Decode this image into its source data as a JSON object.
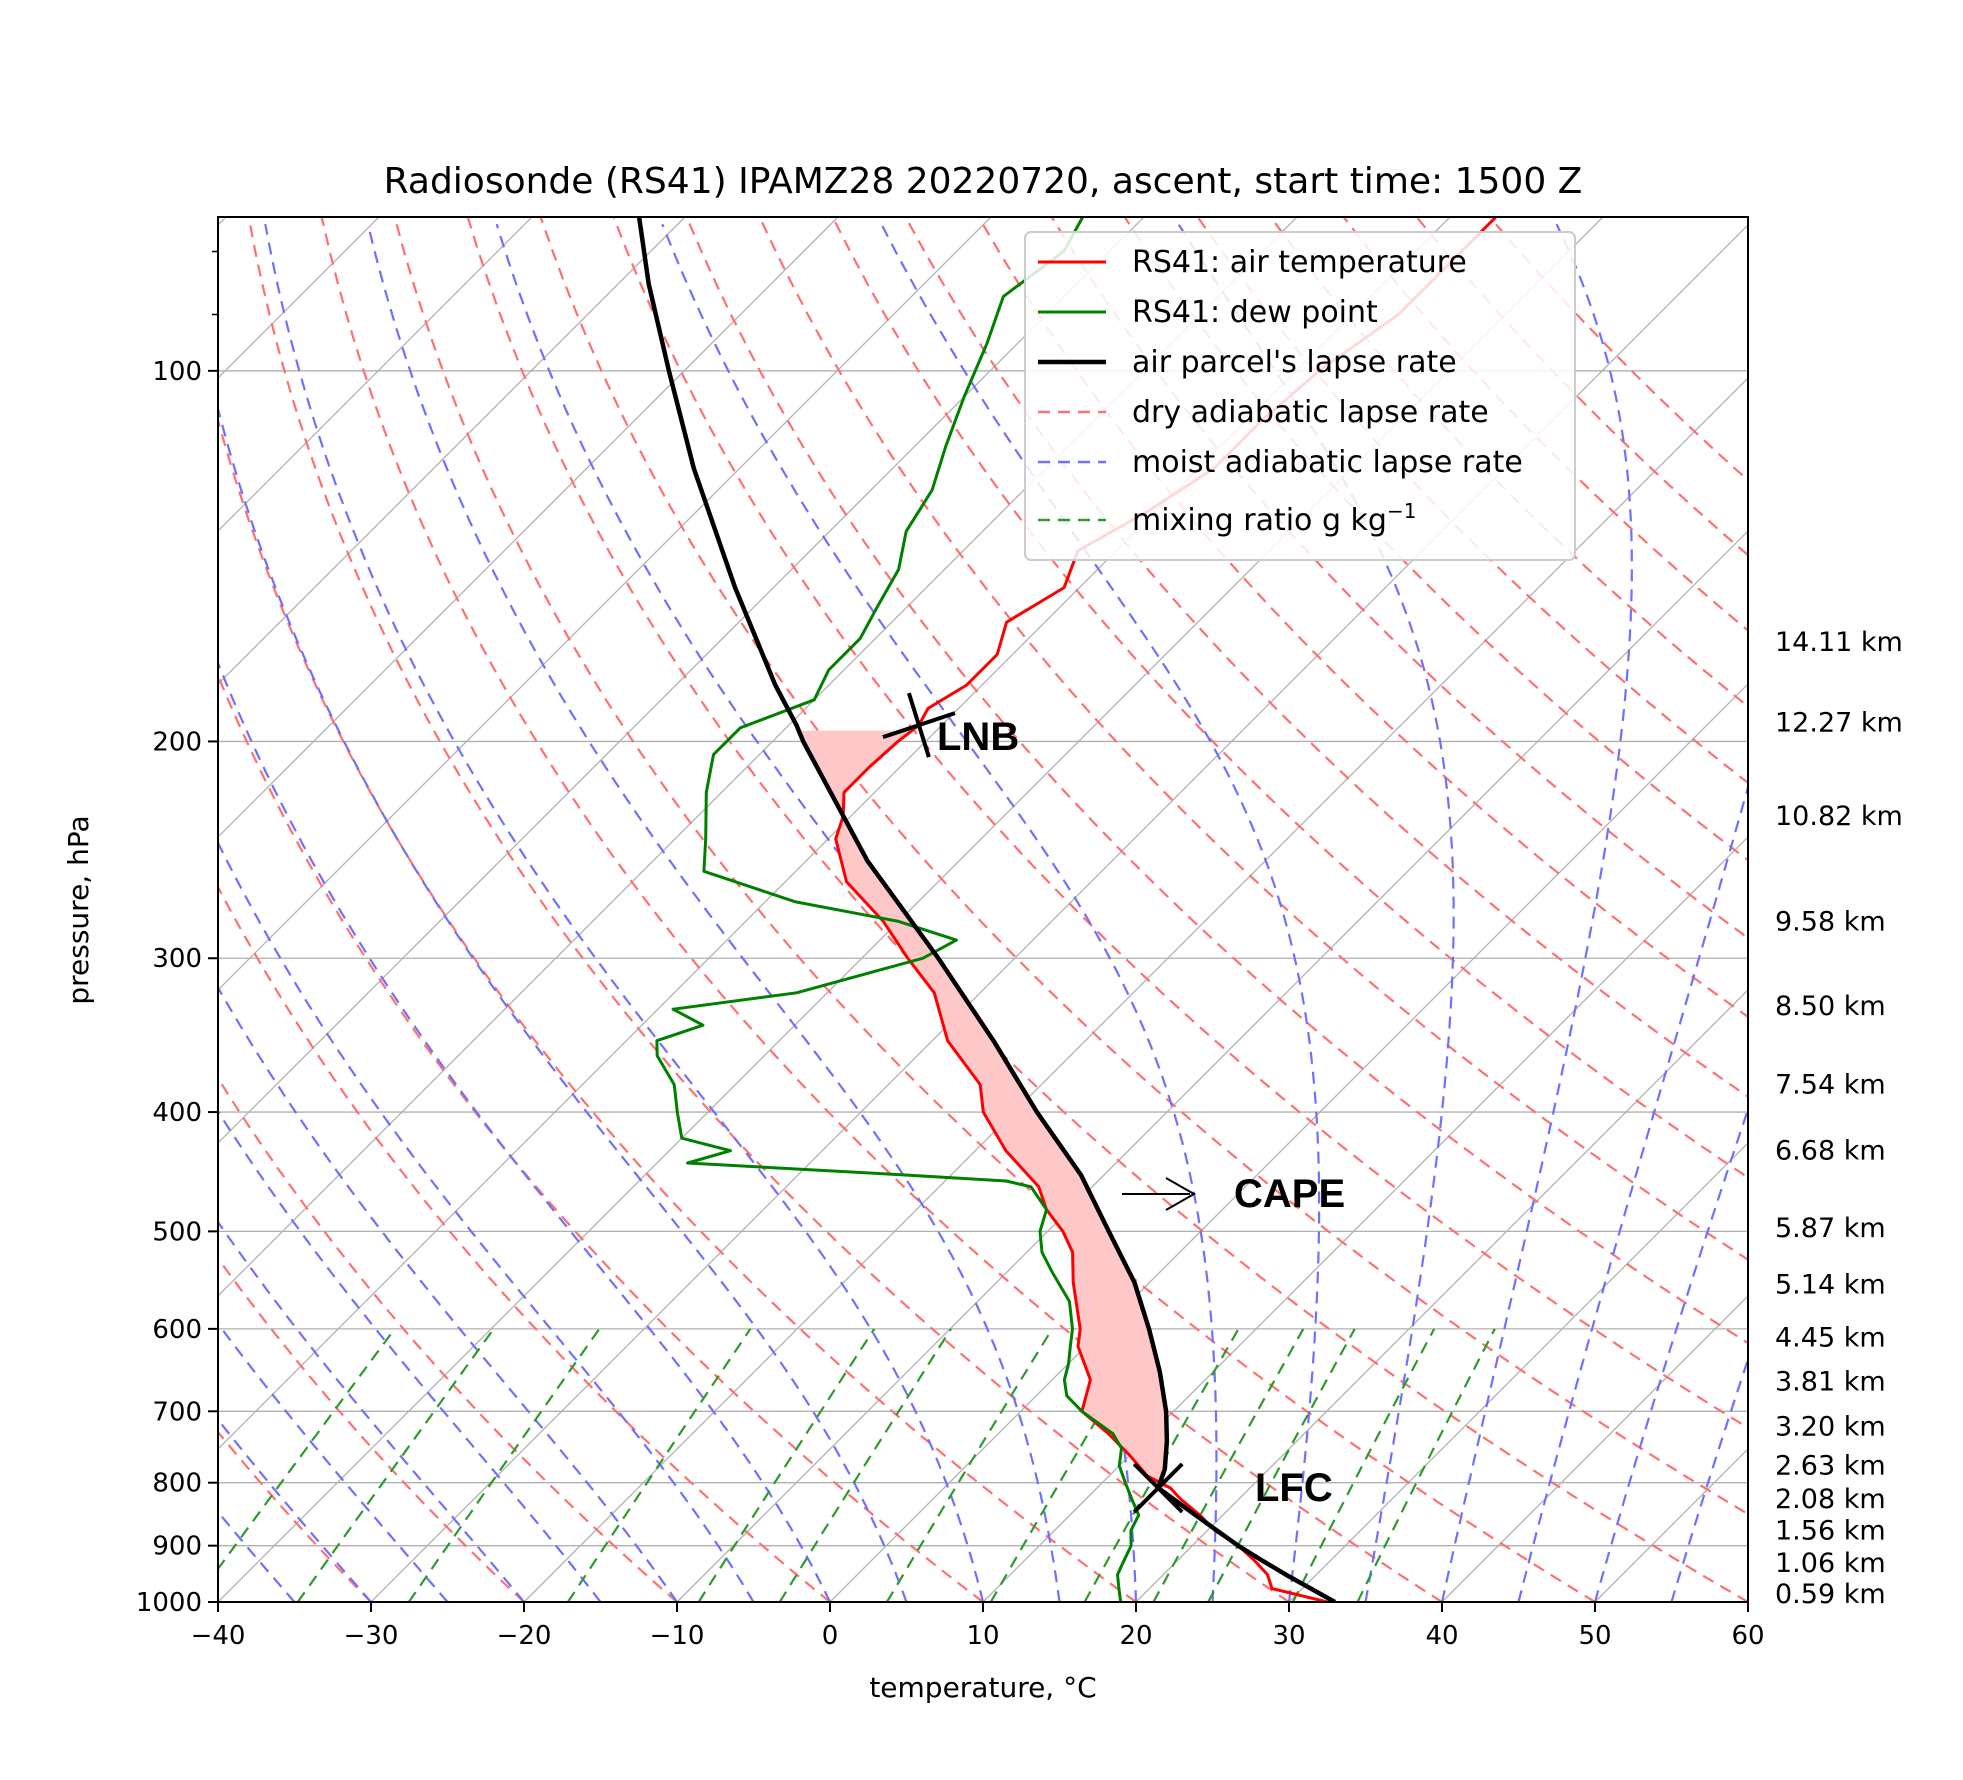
{
  "chart_data": {
    "type": "line",
    "title": "Radiosonde (RS41) IPAMZ28 20220720, ascent, start time: 1500 Z",
    "xlabel": "temperature, °C",
    "ylabel": "pressure, hPa",
    "xlim": [
      -40,
      60
    ],
    "ylim": [
      1000,
      75
    ],
    "yscale": "log",
    "grid": true,
    "skew": 45,
    "x_ticks": [
      "−40",
      "−30",
      "−20",
      "−10",
      "0",
      "10",
      "20",
      "30",
      "40",
      "50",
      "60"
    ],
    "x_tick_values": [
      -40,
      -30,
      -20,
      -10,
      0,
      10,
      20,
      30,
      40,
      50,
      60
    ],
    "y_ticks": [
      "100",
      "200",
      "300",
      "400",
      "500",
      "600",
      "700",
      "800",
      "900",
      "1000"
    ],
    "y_tick_values": [
      100,
      200,
      300,
      400,
      500,
      600,
      700,
      800,
      900,
      1000
    ],
    "legend": {
      "position": "upper-right",
      "entries": [
        {
          "label": "RS41: air temperature",
          "color": "#ff0000",
          "style": "solid"
        },
        {
          "label": "RS41: dew point",
          "color": "#008000",
          "style": "solid"
        },
        {
          "label": "air parcel's lapse rate",
          "color": "#000000",
          "style": "solid"
        },
        {
          "label": "dry adiabatic lapse rate",
          "color": "#ff7070",
          "style": "dashed"
        },
        {
          "label": "moist adiabatic lapse rate",
          "color": "#7070ff",
          "style": "dashed"
        },
        {
          "label": "mixing ratio g kg",
          "sup": "−1",
          "color": "#2e9a2e",
          "style": "dashed"
        }
      ]
    },
    "height_labels": [
      {
        "p": 166,
        "label": "14.11 km"
      },
      {
        "p": 193,
        "label": "12.27 km"
      },
      {
        "p": 230,
        "label": "10.82 km"
      },
      {
        "p": 280,
        "label": "9.58 km"
      },
      {
        "p": 328,
        "label": "8.50 km"
      },
      {
        "p": 380,
        "label": "7.54 km"
      },
      {
        "p": 430,
        "label": "6.68 km"
      },
      {
        "p": 497,
        "label": "5.87 km"
      },
      {
        "p": 552,
        "label": "5.14 km"
      },
      {
        "p": 610,
        "label": "4.45 km"
      },
      {
        "p": 662,
        "label": "3.81 km"
      },
      {
        "p": 720,
        "label": "3.20 km"
      },
      {
        "p": 775,
        "label": "2.63 km"
      },
      {
        "p": 825,
        "label": "2.08 km"
      },
      {
        "p": 875,
        "label": "1.56 km"
      },
      {
        "p": 930,
        "label": "1.06 km"
      },
      {
        "p": 985,
        "label": "0.59 km"
      }
    ],
    "annotations": [
      {
        "text": "LNB",
        "p": 194,
        "T": -47
      },
      {
        "text": "CAPE",
        "p": 470
      },
      {
        "text": "LFC",
        "p": 808,
        "T": 12
      }
    ],
    "series": [
      {
        "name": "RS41: air temperature",
        "color": "#ff0000",
        "points": [
          [
            1000,
            32.5
          ],
          [
            975,
            28.0
          ],
          [
            950,
            26.8
          ],
          [
            925,
            25.0
          ],
          [
            900,
            23.0
          ],
          [
            875,
            20.5
          ],
          [
            850,
            18.5
          ],
          [
            825,
            16.2
          ],
          [
            808,
            14.8
          ],
          [
            790,
            12.5
          ],
          [
            760,
            10.0
          ],
          [
            730,
            7.2
          ],
          [
            700,
            4.0
          ],
          [
            660,
            2.5
          ],
          [
            620,
            -0.5
          ],
          [
            600,
            -1.5
          ],
          [
            550,
            -5.0
          ],
          [
            520,
            -7.0
          ],
          [
            500,
            -9.0
          ],
          [
            480,
            -11.5
          ],
          [
            460,
            -13.5
          ],
          [
            430,
            -18.0
          ],
          [
            400,
            -22.0
          ],
          [
            380,
            -24.0
          ],
          [
            350,
            -29.0
          ],
          [
            320,
            -33.0
          ],
          [
            300,
            -37.0
          ],
          [
            280,
            -41.0
          ],
          [
            260,
            -46.0
          ],
          [
            240,
            -49.5
          ],
          [
            230,
            -50.5
          ],
          [
            220,
            -52.0
          ],
          [
            210,
            -52.0
          ],
          [
            200,
            -51.8
          ],
          [
            194,
            -51.5
          ],
          [
            188,
            -52.0
          ],
          [
            180,
            -51.0
          ],
          [
            170,
            -51.0
          ],
          [
            160,
            -52.5
          ],
          [
            150,
            -51.0
          ],
          [
            140,
            -52.5
          ],
          [
            130,
            -50.5
          ],
          [
            120,
            -49.0
          ],
          [
            110,
            -49.0
          ],
          [
            100,
            -48.5
          ],
          [
            90,
            -47.0
          ],
          [
            82,
            -47.0
          ],
          [
            75,
            -47.0
          ]
        ]
      },
      {
        "name": "RS41: dew point",
        "color": "#008000",
        "points": [
          [
            1000,
            19.0
          ],
          [
            975,
            18.0
          ],
          [
            950,
            17.0
          ],
          [
            925,
            16.5
          ],
          [
            900,
            16.0
          ],
          [
            875,
            15.0
          ],
          [
            850,
            14.5
          ],
          [
            825,
            13.0
          ],
          [
            800,
            11.5
          ],
          [
            775,
            10.0
          ],
          [
            750,
            9.0
          ],
          [
            730,
            7.5
          ],
          [
            700,
            4.0
          ],
          [
            680,
            2.0
          ],
          [
            660,
            0.8
          ],
          [
            640,
            0.0
          ],
          [
            620,
            -1.0
          ],
          [
            600,
            -2.0
          ],
          [
            570,
            -4.0
          ],
          [
            540,
            -7.0
          ],
          [
            520,
            -9.0
          ],
          [
            500,
            -10.5
          ],
          [
            480,
            -11.5
          ],
          [
            460,
            -14.0
          ],
          [
            455,
            -16.0
          ],
          [
            450,
            -23.0
          ],
          [
            440,
            -38.0
          ],
          [
            430,
            -36.0
          ],
          [
            420,
            -40.0
          ],
          [
            400,
            -42.0
          ],
          [
            380,
            -44.0
          ],
          [
            360,
            -47.0
          ],
          [
            350,
            -48.0
          ],
          [
            340,
            -46.0
          ],
          [
            330,
            -49.0
          ],
          [
            320,
            -42.0
          ],
          [
            300,
            -36.0
          ],
          [
            290,
            -35.0
          ],
          [
            280,
            -40.0
          ],
          [
            270,
            -48.0
          ],
          [
            255,
            -56.0
          ],
          [
            240,
            -58.0
          ],
          [
            220,
            -61.0
          ],
          [
            205,
            -63.0
          ],
          [
            195,
            -63.0
          ],
          [
            185,
            -60.0
          ],
          [
            175,
            -61.0
          ],
          [
            165,
            -61.0
          ],
          [
            155,
            -62.0
          ],
          [
            145,
            -63.0
          ],
          [
            135,
            -65.0
          ],
          [
            125,
            -66.0
          ],
          [
            115,
            -68.0
          ],
          [
            105,
            -70.0
          ],
          [
            95,
            -72.0
          ],
          [
            87,
            -74.0
          ],
          [
            80,
            -73.0
          ],
          [
            75,
            -74.0
          ]
        ]
      },
      {
        "name": "air parcel's lapse rate",
        "color": "#000000",
        "points": [
          [
            1000,
            33.0
          ],
          [
            950,
            28.0
          ],
          [
            925,
            25.5
          ],
          [
            900,
            23.0
          ],
          [
            850,
            18.2
          ],
          [
            808,
            14.0
          ],
          [
            780,
            13.2
          ],
          [
            740,
            11.5
          ],
          [
            700,
            9.5
          ],
          [
            650,
            6.5
          ],
          [
            600,
            3.0
          ],
          [
            550,
            -1.0
          ],
          [
            500,
            -6.0
          ],
          [
            450,
            -11.5
          ],
          [
            400,
            -18.5
          ],
          [
            350,
            -26.0
          ],
          [
            300,
            -35.0
          ],
          [
            250,
            -46.0
          ],
          [
            200,
            -58.0
          ],
          [
            194,
            -59.5
          ],
          [
            180,
            -63.5
          ],
          [
            150,
            -72.5
          ],
          [
            120,
            -83.0
          ],
          [
            100,
            -91.0
          ],
          [
            85,
            -98.0
          ],
          [
            75,
            -103.0
          ]
        ]
      }
    ]
  }
}
